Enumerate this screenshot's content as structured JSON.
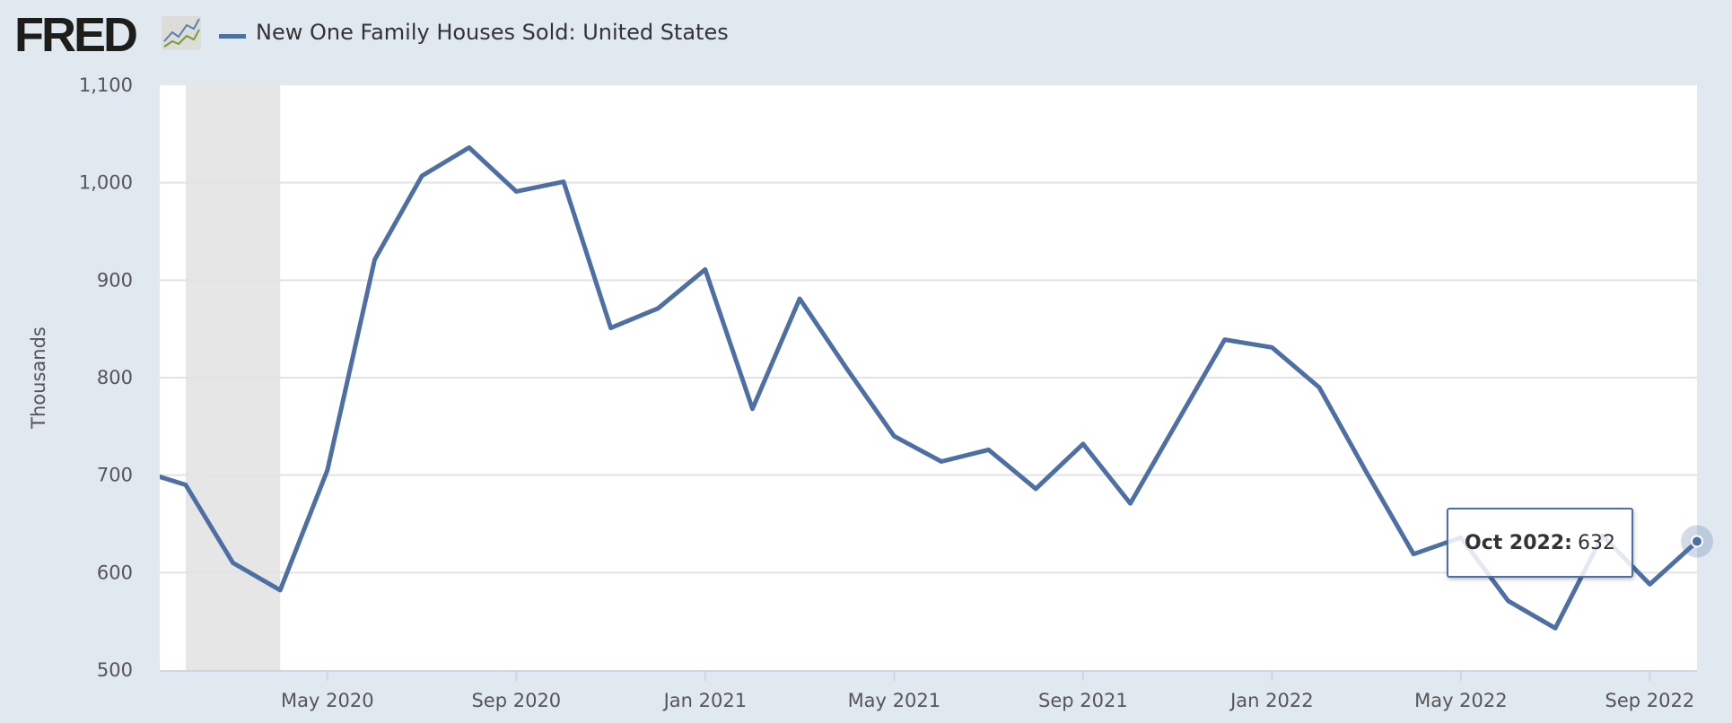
{
  "header": {
    "logo": "FRED",
    "legend_label": "New One Family Houses Sold: United States"
  },
  "tooltip": {
    "date": "Oct 2022:",
    "value": "632"
  },
  "colors": {
    "series": "#4e6fa3",
    "recession": "#e6e6e6",
    "background": "#e1e9f0",
    "plot": "#ffffff"
  },
  "chart_data": {
    "type": "line",
    "title": "",
    "xlabel": "",
    "ylabel": "Thousands",
    "ylim": [
      500,
      1100
    ],
    "yticks": [
      500,
      600,
      700,
      800,
      900,
      1000,
      1100
    ],
    "ytick_labels": [
      "500",
      "600",
      "700",
      "800",
      "900",
      "1,000",
      "1,100"
    ],
    "xtick_labels": [
      "May 2020",
      "Sep 2020",
      "Jan 2021",
      "May 2021",
      "Sep 2021",
      "Jan 2022",
      "May 2022",
      "Sep 2022"
    ],
    "xtick_months": [
      "2020-05",
      "2020-09",
      "2021-01",
      "2021-05",
      "2021-09",
      "2022-01",
      "2022-05",
      "2022-09"
    ],
    "grid": true,
    "legend": "top-left",
    "shaded_periods": [
      [
        "2020-02",
        "2020-04"
      ]
    ],
    "series": [
      {
        "name": "New One Family Houses Sold: United States",
        "x": [
          "2020-01",
          "2020-02",
          "2020-03",
          "2020-04",
          "2020-05",
          "2020-06",
          "2020-07",
          "2020-08",
          "2020-09",
          "2020-10",
          "2020-11",
          "2020-12",
          "2021-01",
          "2021-02",
          "2021-03",
          "2021-04",
          "2021-05",
          "2021-06",
          "2021-07",
          "2021-08",
          "2021-09",
          "2021-10",
          "2021-11",
          "2021-12",
          "2022-01",
          "2022-02",
          "2022-03",
          "2022-04",
          "2022-05",
          "2022-06",
          "2022-07",
          "2022-08",
          "2022-09",
          "2022-10"
        ],
        "values": [
          705,
          690,
          610,
          582,
          705,
          921,
          1007,
          1036,
          991,
          1001,
          851,
          871,
          911,
          768,
          881,
          809,
          740,
          714,
          726,
          686,
          732,
          671,
          755,
          839,
          831,
          790,
          703,
          619,
          636,
          571,
          543,
          638,
          588,
          632
        ]
      }
    ]
  }
}
